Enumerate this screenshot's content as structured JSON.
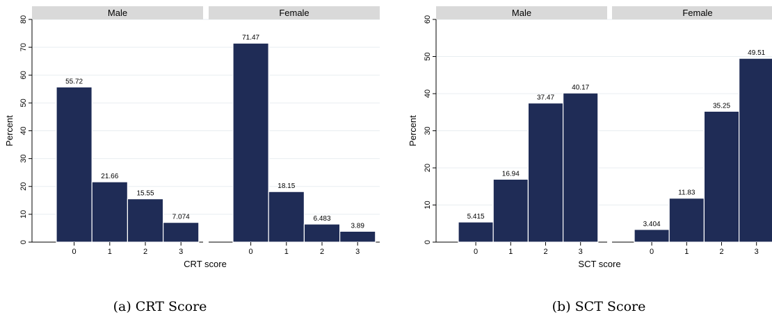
{
  "chart_data": [
    {
      "type": "bar",
      "ylabel": "Percent",
      "xlabel": "CRT score",
      "caption": "(a) CRT Score",
      "ylim": [
        0,
        80
      ],
      "yticks": [
        "0",
        "10",
        "20",
        "30",
        "40",
        "50",
        "60",
        "70",
        "80"
      ],
      "categories": [
        "0",
        "1",
        "2",
        "3"
      ],
      "grid": true,
      "panels": [
        {
          "name": "Male",
          "values": [
            55.72,
            21.66,
            15.55,
            7.074
          ],
          "labels": [
            "55.72",
            "21.66",
            "15.55",
            "7.074"
          ]
        },
        {
          "name": "Female",
          "values": [
            71.47,
            18.15,
            6.483,
            3.89
          ],
          "labels": [
            "71.47",
            "18.15",
            "6.483",
            "3.89"
          ]
        }
      ]
    },
    {
      "type": "bar",
      "ylabel": "Percent",
      "xlabel": "SCT score",
      "caption": "(b) SCT Score",
      "ylim": [
        0,
        60
      ],
      "yticks": [
        "0",
        "10",
        "20",
        "30",
        "40",
        "50",
        "60"
      ],
      "categories": [
        "0",
        "1",
        "2",
        "3"
      ],
      "grid": true,
      "panels": [
        {
          "name": "Male",
          "values": [
            5.415,
            16.94,
            37.47,
            40.17
          ],
          "labels": [
            "5.415",
            "16.94",
            "37.47",
            "40.17"
          ]
        },
        {
          "name": "Female",
          "values": [
            3.404,
            11.83,
            35.25,
            49.51
          ],
          "labels": [
            "3.404",
            "11.83",
            "35.25",
            "49.51"
          ]
        }
      ]
    }
  ],
  "colors": {
    "bar": "#1f2c56",
    "strip": "#d9d9d9",
    "grid": "#e8edf0"
  }
}
